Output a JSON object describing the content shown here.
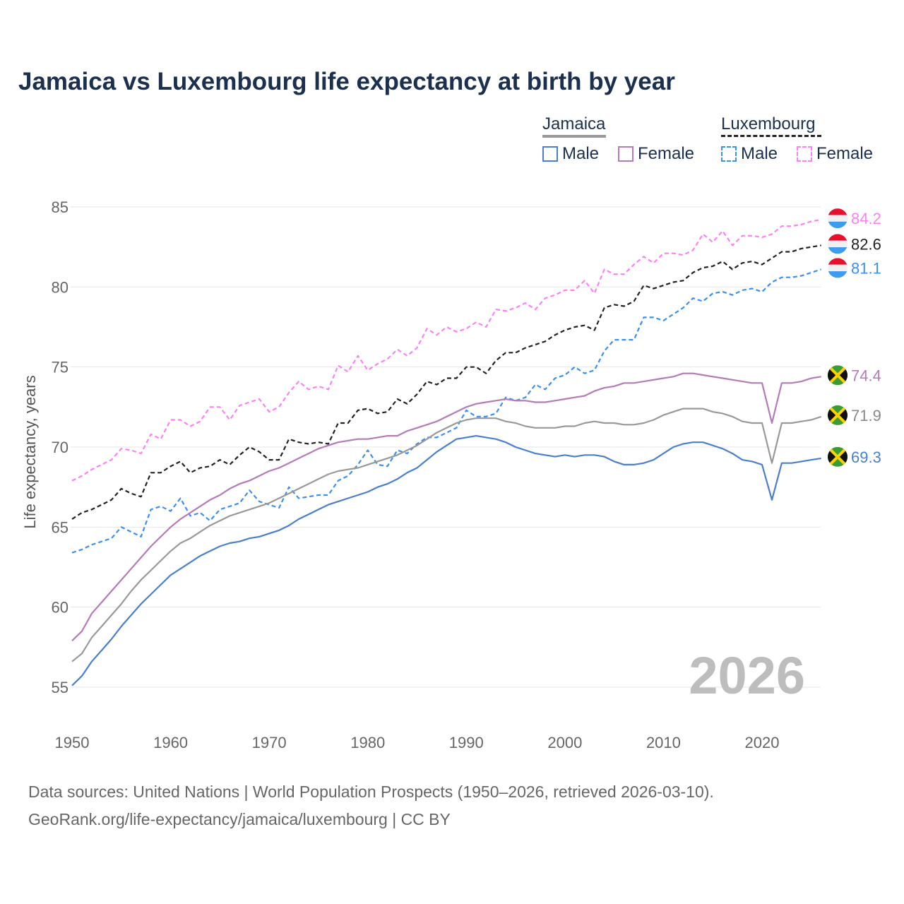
{
  "title": "Jamaica vs Luxembourg life expectancy at birth by year",
  "legend": {
    "groups": [
      {
        "name": "Jamaica",
        "items": [
          {
            "label": "Male",
            "color": "#4a7fd0"
          },
          {
            "label": "Female",
            "color": "#b57bb8"
          }
        ]
      },
      {
        "name": "Luxembourg",
        "items": [
          {
            "label": "Male",
            "color": "#3b8ff5"
          },
          {
            "label": "Female",
            "color": "#ff80f5"
          }
        ]
      }
    ]
  },
  "watermark_year": "2026",
  "sources": {
    "line1": "Data sources: United Nations | World Population Prospects (1950–2026, retrieved 2026-03-10).",
    "line2": "GeoRank.org/life-expectancy/jamaica/luxembourg | CC BY"
  },
  "chart_data": {
    "type": "line",
    "title": "Jamaica vs Luxembourg life expectancy at birth by year",
    "xlabel": "",
    "ylabel": "Life expectancy, years",
    "xlim": [
      1950,
      2026
    ],
    "ylim": [
      53,
      86.5
    ],
    "xticks": [
      1950,
      1960,
      1970,
      1980,
      1990,
      2000,
      2010,
      2020
    ],
    "yticks": [
      55,
      60,
      65,
      70,
      75,
      80,
      85
    ],
    "grid": true,
    "legend_position": "top-right",
    "x_start": 1950,
    "series": [
      {
        "name": "Luxembourg Female",
        "color": "#ff80f5",
        "dashed": true,
        "flag": "luxembourg",
        "end_label": "84.2",
        "values": [
          67.9,
          68.2,
          68.6,
          68.9,
          69.2,
          69.9,
          69.8,
          69.6,
          70.8,
          70.5,
          71.7,
          71.7,
          71.3,
          71.6,
          72.5,
          72.5,
          71.7,
          72.6,
          72.8,
          73.0,
          72.2,
          72.5,
          73.4,
          74.1,
          73.6,
          73.8,
          73.6,
          75.1,
          74.7,
          75.7,
          74.8,
          75.2,
          75.5,
          76.1,
          75.7,
          76.2,
          77.4,
          77.0,
          77.5,
          77.2,
          77.4,
          77.8,
          77.5,
          78.6,
          78.5,
          78.7,
          79.0,
          78.6,
          79.3,
          79.5,
          79.8,
          79.8,
          80.4,
          79.6,
          81.1,
          80.8,
          80.8,
          81.4,
          81.9,
          81.5,
          82.1,
          82.1,
          82.0,
          82.3,
          83.3,
          82.8,
          83.5,
          82.6,
          83.2,
          83.2,
          83.1,
          83.3,
          83.8,
          83.8,
          83.9,
          84.1,
          84.2
        ]
      },
      {
        "name": "Luxembourg",
        "color": "#222222",
        "dashed": true,
        "flag": "luxembourg",
        "end_label": "82.6",
        "values": [
          65.5,
          65.9,
          66.1,
          66.4,
          66.7,
          67.4,
          67.1,
          66.9,
          68.4,
          68.4,
          68.8,
          69.1,
          68.4,
          68.7,
          68.8,
          69.2,
          68.9,
          69.5,
          70.0,
          69.7,
          69.2,
          69.2,
          70.5,
          70.3,
          70.2,
          70.3,
          70.2,
          71.5,
          71.5,
          72.3,
          72.4,
          72.1,
          72.2,
          73.0,
          72.7,
          73.3,
          74.1,
          73.9,
          74.3,
          74.3,
          75.0,
          75.0,
          74.6,
          75.4,
          75.9,
          75.9,
          76.2,
          76.4,
          76.6,
          77.0,
          77.3,
          77.5,
          77.6,
          77.3,
          78.7,
          78.9,
          78.8,
          79.1,
          80.1,
          79.9,
          80.1,
          80.3,
          80.4,
          80.9,
          81.2,
          81.3,
          81.6,
          81.1,
          81.5,
          81.6,
          81.4,
          81.8,
          82.2,
          82.2,
          82.4,
          82.5,
          82.6
        ]
      },
      {
        "name": "Luxembourg Male",
        "color": "#3b8ff5",
        "dashed": true,
        "flag": "luxembourg",
        "end_label": "81.1",
        "values": [
          63.4,
          63.6,
          63.9,
          64.1,
          64.3,
          65.0,
          64.7,
          64.4,
          66.1,
          66.3,
          66.0,
          66.8,
          65.7,
          65.9,
          65.4,
          66.1,
          66.3,
          66.5,
          67.3,
          66.6,
          66.4,
          66.2,
          67.5,
          66.8,
          66.9,
          67.0,
          67.0,
          67.9,
          68.2,
          68.9,
          69.8,
          68.9,
          68.8,
          69.8,
          69.6,
          70.2,
          70.6,
          70.6,
          70.9,
          71.2,
          72.3,
          71.9,
          71.9,
          72.1,
          73.1,
          72.9,
          73.1,
          73.9,
          73.6,
          74.3,
          74.5,
          75.0,
          74.6,
          74.8,
          76.0,
          76.7,
          76.7,
          76.7,
          78.1,
          78.1,
          77.9,
          78.3,
          78.7,
          79.3,
          79.1,
          79.6,
          79.7,
          79.5,
          79.8,
          79.9,
          79.7,
          80.3,
          80.6,
          80.6,
          80.7,
          80.9,
          81.1
        ]
      },
      {
        "name": "Jamaica Female",
        "color": "#b57bb8",
        "dashed": false,
        "flag": "jamaica",
        "end_label": "74.4",
        "values": [
          57.9,
          58.5,
          59.6,
          60.3,
          61.0,
          61.7,
          62.4,
          63.1,
          63.8,
          64.4,
          65.0,
          65.5,
          65.9,
          66.3,
          66.7,
          67.0,
          67.4,
          67.7,
          67.9,
          68.2,
          68.5,
          68.7,
          69.0,
          69.3,
          69.6,
          69.9,
          70.1,
          70.3,
          70.4,
          70.5,
          70.5,
          70.6,
          70.7,
          70.7,
          71.0,
          71.2,
          71.4,
          71.6,
          71.9,
          72.2,
          72.5,
          72.7,
          72.8,
          72.9,
          73.0,
          72.9,
          72.9,
          72.8,
          72.8,
          72.9,
          73.0,
          73.1,
          73.2,
          73.5,
          73.7,
          73.8,
          74.0,
          74.0,
          74.1,
          74.2,
          74.3,
          74.4,
          74.6,
          74.6,
          74.5,
          74.4,
          74.3,
          74.2,
          74.1,
          74.0,
          74.0,
          71.5,
          74.0,
          74.0,
          74.1,
          74.3,
          74.4
        ]
      },
      {
        "name": "Jamaica",
        "color": "#999999",
        "dashed": false,
        "flag": "jamaica",
        "end_label": "71.9",
        "values": [
          56.6,
          57.1,
          58.1,
          58.8,
          59.5,
          60.2,
          61.0,
          61.7,
          62.3,
          62.9,
          63.5,
          64.0,
          64.3,
          64.7,
          65.1,
          65.4,
          65.7,
          65.9,
          66.1,
          66.3,
          66.5,
          66.8,
          67.1,
          67.4,
          67.7,
          68.0,
          68.3,
          68.5,
          68.6,
          68.7,
          68.9,
          69.1,
          69.3,
          69.5,
          69.8,
          70.1,
          70.5,
          70.9,
          71.2,
          71.5,
          71.7,
          71.8,
          71.8,
          71.8,
          71.6,
          71.5,
          71.3,
          71.2,
          71.2,
          71.2,
          71.3,
          71.3,
          71.5,
          71.6,
          71.5,
          71.5,
          71.4,
          71.4,
          71.5,
          71.7,
          72.0,
          72.2,
          72.4,
          72.4,
          72.4,
          72.2,
          72.1,
          71.9,
          71.6,
          71.5,
          71.5,
          69.0,
          71.5,
          71.5,
          71.6,
          71.7,
          71.9
        ]
      },
      {
        "name": "Jamaica Male",
        "color": "#4a7fd0",
        "dashed": false,
        "flag": "jamaica",
        "end_label": "69.3",
        "values": [
          55.1,
          55.7,
          56.6,
          57.3,
          58.0,
          58.8,
          59.5,
          60.2,
          60.8,
          61.4,
          62.0,
          62.4,
          62.8,
          63.2,
          63.5,
          63.8,
          64.0,
          64.1,
          64.3,
          64.4,
          64.6,
          64.8,
          65.1,
          65.5,
          65.8,
          66.1,
          66.4,
          66.6,
          66.8,
          67.0,
          67.2,
          67.5,
          67.7,
          68.0,
          68.4,
          68.7,
          69.2,
          69.7,
          70.1,
          70.5,
          70.6,
          70.7,
          70.6,
          70.5,
          70.3,
          70.0,
          69.8,
          69.6,
          69.5,
          69.4,
          69.5,
          69.4,
          69.5,
          69.5,
          69.4,
          69.1,
          68.9,
          68.9,
          69.0,
          69.2,
          69.6,
          70.0,
          70.2,
          70.3,
          70.3,
          70.1,
          69.9,
          69.6,
          69.2,
          69.1,
          68.9,
          66.7,
          69.0,
          69.0,
          69.1,
          69.2,
          69.3
        ]
      }
    ]
  }
}
